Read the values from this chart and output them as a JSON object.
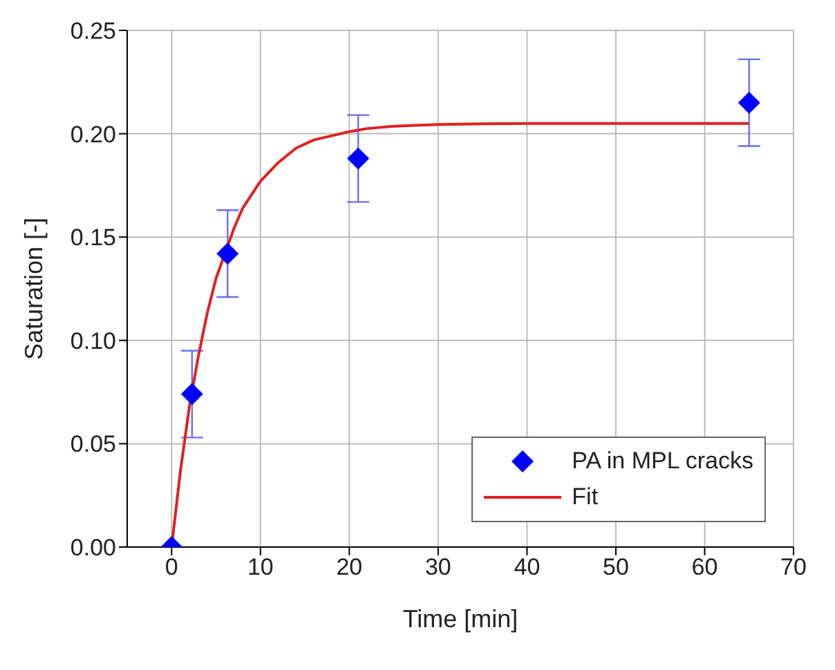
{
  "chart_data": {
    "type": "scatter",
    "xlabel": "Time [min]",
    "ylabel": "Saturation [-]",
    "xlim": [
      -5,
      70
    ],
    "xticks": [
      0,
      10,
      20,
      30,
      40,
      50,
      60,
      70
    ],
    "ylim": [
      0,
      0.25
    ],
    "yticks": [
      {
        "value": 0,
        "label": "0.00"
      },
      {
        "value": 0.05,
        "label": "0.05"
      },
      {
        "value": 0.1,
        "label": "0.10"
      },
      {
        "value": 0.15,
        "label": "0.15"
      },
      {
        "value": 0.2,
        "label": "0.20"
      },
      {
        "value": 0.25,
        "label": "0.25"
      }
    ],
    "grid": true,
    "legend": "bottom right",
    "series": [
      {
        "name": "PA in MPL cracks",
        "color": "#0000ff",
        "marker": "diamond",
        "x": [
          0,
          2.3,
          6.3,
          21,
          65
        ],
        "values": [
          0,
          0.074,
          0.142,
          0.188,
          0.215
        ],
        "errors": [
          null,
          0.021,
          0.021,
          0.021,
          0.021
        ]
      },
      {
        "name": "Fit",
        "type": "line",
        "color": "#e02020",
        "marker": "none",
        "line_style": "solid",
        "x": [
          0,
          1,
          2,
          3,
          4,
          5,
          7,
          8,
          10,
          12,
          14,
          16,
          18,
          20,
          22,
          25,
          30,
          35,
          40,
          50,
          65
        ],
        "values": [
          0,
          0.037,
          0.068,
          0.092,
          0.113,
          0.13,
          0.154,
          0.164,
          0.177,
          0.186,
          0.193,
          0.197,
          0.199,
          0.201,
          0.2025,
          0.2036,
          0.2045,
          0.2048,
          0.205,
          0.205,
          0.205
        ]
      }
    ]
  }
}
